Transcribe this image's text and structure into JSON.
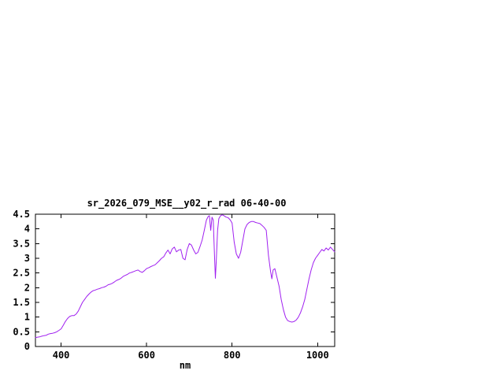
{
  "window": {
    "background": "#ffffff",
    "text_color": "#000000"
  },
  "chart_data": {
    "type": "line",
    "title": "sr_2026_079_MSE__y02_r_rad 06-40-00",
    "xlabel": "nm",
    "ylabel": "",
    "xlim": [
      340,
      1040
    ],
    "ylim": [
      0,
      4.5
    ],
    "grid": false,
    "legend_position": "none",
    "line_color": "#a020f0",
    "xticks": [
      [
        400,
        "400"
      ],
      [
        600,
        "600"
      ],
      [
        800,
        "800"
      ],
      [
        1000,
        "1000"
      ]
    ],
    "yticks": [
      [
        0,
        "0"
      ],
      [
        0.5,
        "0.5"
      ],
      [
        1,
        "1"
      ],
      [
        1.5,
        "1.5"
      ],
      [
        2,
        "2"
      ],
      [
        2.5,
        "2.5"
      ],
      [
        3,
        "3"
      ],
      [
        3.5,
        "3.5"
      ],
      [
        4,
        "4"
      ],
      [
        4.5,
        "4.5"
      ]
    ],
    "series": [
      {
        "name": "sr_2026_079_MSE__y02_r_rad 06-40-00",
        "points": [
          [
            340,
            0.3
          ],
          [
            345,
            0.32
          ],
          [
            350,
            0.33
          ],
          [
            355,
            0.35
          ],
          [
            360,
            0.37
          ],
          [
            365,
            0.38
          ],
          [
            370,
            0.42
          ],
          [
            375,
            0.44
          ],
          [
            380,
            0.45
          ],
          [
            385,
            0.47
          ],
          [
            390,
            0.5
          ],
          [
            395,
            0.55
          ],
          [
            400,
            0.6
          ],
          [
            405,
            0.72
          ],
          [
            410,
            0.85
          ],
          [
            415,
            0.95
          ],
          [
            420,
            1.02
          ],
          [
            425,
            1.05
          ],
          [
            430,
            1.05
          ],
          [
            435,
            1.1
          ],
          [
            440,
            1.2
          ],
          [
            445,
            1.35
          ],
          [
            450,
            1.5
          ],
          [
            455,
            1.6
          ],
          [
            460,
            1.7
          ],
          [
            465,
            1.78
          ],
          [
            470,
            1.85
          ],
          [
            475,
            1.9
          ],
          [
            480,
            1.92
          ],
          [
            485,
            1.95
          ],
          [
            490,
            1.97
          ],
          [
            495,
            2.0
          ],
          [
            500,
            2.02
          ],
          [
            505,
            2.05
          ],
          [
            510,
            2.1
          ],
          [
            515,
            2.12
          ],
          [
            520,
            2.15
          ],
          [
            525,
            2.2
          ],
          [
            530,
            2.25
          ],
          [
            535,
            2.28
          ],
          [
            540,
            2.32
          ],
          [
            545,
            2.38
          ],
          [
            550,
            2.42
          ],
          [
            555,
            2.45
          ],
          [
            560,
            2.5
          ],
          [
            565,
            2.52
          ],
          [
            570,
            2.55
          ],
          [
            575,
            2.58
          ],
          [
            580,
            2.6
          ],
          [
            585,
            2.55
          ],
          [
            590,
            2.52
          ],
          [
            595,
            2.58
          ],
          [
            600,
            2.65
          ],
          [
            605,
            2.68
          ],
          [
            610,
            2.72
          ],
          [
            615,
            2.75
          ],
          [
            620,
            2.78
          ],
          [
            625,
            2.85
          ],
          [
            630,
            2.92
          ],
          [
            635,
            3.0
          ],
          [
            640,
            3.05
          ],
          [
            645,
            3.18
          ],
          [
            650,
            3.28
          ],
          [
            655,
            3.15
          ],
          [
            660,
            3.32
          ],
          [
            665,
            3.38
          ],
          [
            670,
            3.22
          ],
          [
            675,
            3.28
          ],
          [
            680,
            3.3
          ],
          [
            685,
            3.0
          ],
          [
            690,
            2.95
          ],
          [
            695,
            3.3
          ],
          [
            700,
            3.5
          ],
          [
            705,
            3.45
          ],
          [
            710,
            3.28
          ],
          [
            715,
            3.15
          ],
          [
            720,
            3.2
          ],
          [
            725,
            3.4
          ],
          [
            730,
            3.62
          ],
          [
            735,
            3.95
          ],
          [
            740,
            4.3
          ],
          [
            744,
            4.42
          ],
          [
            747,
            4.45
          ],
          [
            750,
            3.95
          ],
          [
            753,
            4.4
          ],
          [
            756,
            4.3
          ],
          [
            759,
            3.0
          ],
          [
            761,
            2.32
          ],
          [
            763,
            2.9
          ],
          [
            766,
            3.95
          ],
          [
            769,
            4.35
          ],
          [
            773,
            4.45
          ],
          [
            777,
            4.48
          ],
          [
            781,
            4.45
          ],
          [
            786,
            4.4
          ],
          [
            791,
            4.38
          ],
          [
            796,
            4.3
          ],
          [
            800,
            4.2
          ],
          [
            805,
            3.55
          ],
          [
            810,
            3.15
          ],
          [
            815,
            3.0
          ],
          [
            820,
            3.2
          ],
          [
            825,
            3.6
          ],
          [
            830,
            4.0
          ],
          [
            835,
            4.15
          ],
          [
            840,
            4.22
          ],
          [
            845,
            4.25
          ],
          [
            850,
            4.25
          ],
          [
            855,
            4.22
          ],
          [
            860,
            4.2
          ],
          [
            865,
            4.18
          ],
          [
            870,
            4.12
          ],
          [
            875,
            4.05
          ],
          [
            880,
            3.95
          ],
          [
            885,
            3.1
          ],
          [
            890,
            2.55
          ],
          [
            893,
            2.3
          ],
          [
            896,
            2.6
          ],
          [
            900,
            2.65
          ],
          [
            905,
            2.35
          ],
          [
            910,
            2.05
          ],
          [
            915,
            1.6
          ],
          [
            920,
            1.25
          ],
          [
            925,
            1.0
          ],
          [
            930,
            0.88
          ],
          [
            935,
            0.85
          ],
          [
            940,
            0.83
          ],
          [
            945,
            0.85
          ],
          [
            950,
            0.9
          ],
          [
            955,
            1.0
          ],
          [
            960,
            1.15
          ],
          [
            965,
            1.35
          ],
          [
            970,
            1.6
          ],
          [
            975,
            1.95
          ],
          [
            980,
            2.3
          ],
          [
            985,
            2.6
          ],
          [
            990,
            2.85
          ],
          [
            995,
            3.0
          ],
          [
            1000,
            3.1
          ],
          [
            1005,
            3.2
          ],
          [
            1010,
            3.3
          ],
          [
            1015,
            3.25
          ],
          [
            1020,
            3.35
          ],
          [
            1025,
            3.28
          ],
          [
            1030,
            3.38
          ],
          [
            1035,
            3.3
          ],
          [
            1040,
            3.22
          ]
        ]
      }
    ]
  }
}
